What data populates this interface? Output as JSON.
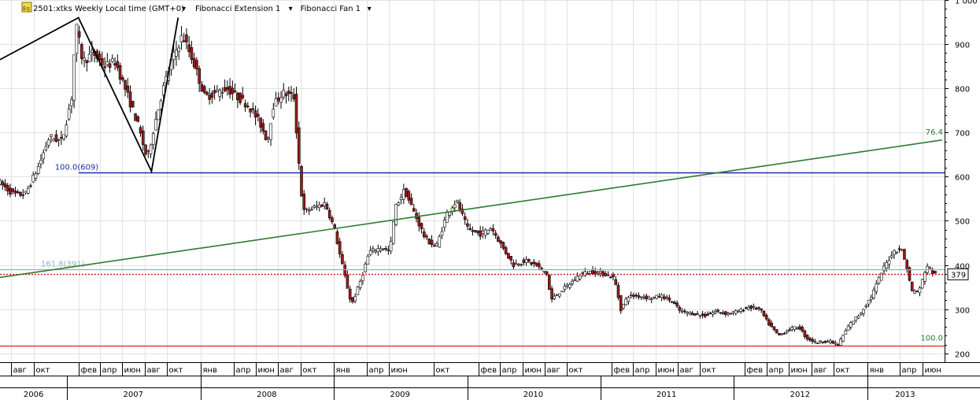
{
  "header": {
    "symbol_title": "2501:xtks Weekly Local time (GMT+0)",
    "indicators": [
      {
        "label": "Fibonacci Extension 1"
      },
      {
        "label": "Fibonacci Fan 1"
      }
    ]
  },
  "chart_data": {
    "type": "candlestick",
    "title": "2501:xtks Weekly Local time (GMT+0)",
    "ylim": [
      180,
      1000
    ],
    "y_ticks": [
      {
        "value": 1000,
        "label": "1 000"
      },
      {
        "value": 900,
        "label": "900"
      },
      {
        "value": 800,
        "label": "800"
      },
      {
        "value": 700,
        "label": "700"
      },
      {
        "value": 600,
        "label": "600"
      },
      {
        "value": 500,
        "label": "500"
      },
      {
        "value": 400,
        "label": "400"
      },
      {
        "value": 300,
        "label": "300"
      },
      {
        "value": 200,
        "label": "200"
      }
    ],
    "x_range": [
      "2006-07-01",
      "2013-08-01"
    ],
    "month_ticks": [
      {
        "date": "2006-08-01",
        "label": "авг"
      },
      {
        "date": "2006-10-01",
        "label": "окт"
      },
      {
        "date": "2007-02-01",
        "label": "фев"
      },
      {
        "date": "2007-04-01",
        "label": "апр"
      },
      {
        "date": "2007-06-01",
        "label": "июн"
      },
      {
        "date": "2007-08-01",
        "label": "авг"
      },
      {
        "date": "2007-10-01",
        "label": "окт"
      },
      {
        "date": "2008-01-01",
        "label": "янв"
      },
      {
        "date": "2008-04-01",
        "label": "апр"
      },
      {
        "date": "2008-06-01",
        "label": "июн"
      },
      {
        "date": "2008-08-01",
        "label": "авг"
      },
      {
        "date": "2008-10-01",
        "label": "окт"
      },
      {
        "date": "2009-01-01",
        "label": "янв"
      },
      {
        "date": "2009-04-01",
        "label": "апр"
      },
      {
        "date": "2009-06-01",
        "label": "июн"
      },
      {
        "date": "2009-10-01",
        "label": "окт"
      },
      {
        "date": "2010-02-01",
        "label": "фев"
      },
      {
        "date": "2010-04-01",
        "label": "апр"
      },
      {
        "date": "2010-06-01",
        "label": "июн"
      },
      {
        "date": "2010-08-01",
        "label": "авг"
      },
      {
        "date": "2010-10-01",
        "label": "окт"
      },
      {
        "date": "2011-02-01",
        "label": "фев"
      },
      {
        "date": "2011-04-01",
        "label": "апр"
      },
      {
        "date": "2011-06-01",
        "label": "июн"
      },
      {
        "date": "2011-08-01",
        "label": "авг"
      },
      {
        "date": "2011-10-01",
        "label": "окт"
      },
      {
        "date": "2012-02-01",
        "label": "фев"
      },
      {
        "date": "2012-04-01",
        "label": "апр"
      },
      {
        "date": "2012-06-01",
        "label": "июн"
      },
      {
        "date": "2012-08-01",
        "label": "авг"
      },
      {
        "date": "2012-10-01",
        "label": "окт"
      },
      {
        "date": "2013-01-01",
        "label": "янв"
      },
      {
        "date": "2013-04-01",
        "label": "апр"
      },
      {
        "date": "2013-06-01",
        "label": "июн"
      }
    ],
    "year_labels": [
      {
        "date": "2006-10-01",
        "label": "2006"
      },
      {
        "date": "2007-07-01",
        "label": "2007"
      },
      {
        "date": "2008-07-01",
        "label": "2008"
      },
      {
        "date": "2009-07-01",
        "label": "2009"
      },
      {
        "date": "2010-07-01",
        "label": "2010"
      },
      {
        "date": "2011-07-01",
        "label": "2011"
      },
      {
        "date": "2012-07-01",
        "label": "2012"
      },
      {
        "date": "2013-04-15",
        "label": "2013"
      }
    ],
    "year_boundaries": [
      "2007-01-01",
      "2008-01-01",
      "2009-01-01",
      "2010-01-01",
      "2011-01-01",
      "2012-01-01",
      "2013-01-01"
    ],
    "price_keypoints": [
      [
        "2006-07-01",
        590
      ],
      [
        "2006-08-15",
        560
      ],
      [
        "2006-09-15",
        560
      ],
      [
        "2006-10-20",
        620
      ],
      [
        "2006-11-20",
        690
      ],
      [
        "2006-12-25",
        680
      ],
      [
        "2007-01-20",
        780
      ],
      [
        "2007-02-01",
        945
      ],
      [
        "2007-02-20",
        860
      ],
      [
        "2007-03-20",
        880
      ],
      [
        "2007-04-20",
        850
      ],
      [
        "2007-05-20",
        860
      ],
      [
        "2007-06-20",
        790
      ],
      [
        "2007-07-20",
        720
      ],
      [
        "2007-08-15",
        640
      ],
      [
        "2007-09-05",
        720
      ],
      [
        "2007-09-25",
        790
      ],
      [
        "2007-10-20",
        860
      ],
      [
        "2007-11-20",
        920
      ],
      [
        "2007-12-20",
        860
      ],
      [
        "2008-01-20",
        780
      ],
      [
        "2008-02-20",
        790
      ],
      [
        "2008-03-20",
        800
      ],
      [
        "2008-04-20",
        780
      ],
      [
        "2008-05-20",
        760
      ],
      [
        "2008-06-20",
        720
      ],
      [
        "2008-07-10",
        680
      ],
      [
        "2008-07-25",
        760
      ],
      [
        "2008-08-20",
        790
      ],
      [
        "2008-09-20",
        780
      ],
      [
        "2008-10-05",
        620
      ],
      [
        "2008-10-15",
        520
      ],
      [
        "2008-11-15",
        530
      ],
      [
        "2008-12-15",
        540
      ],
      [
        "2009-01-10",
        480
      ],
      [
        "2009-01-25",
        420
      ],
      [
        "2009-02-25",
        310
      ],
      [
        "2009-03-20",
        360
      ],
      [
        "2009-04-15",
        430
      ],
      [
        "2009-05-20",
        440
      ],
      [
        "2009-06-10",
        430
      ],
      [
        "2009-06-25",
        530
      ],
      [
        "2009-07-20",
        570
      ],
      [
        "2009-08-15",
        520
      ],
      [
        "2009-09-15",
        460
      ],
      [
        "2009-10-15",
        440
      ],
      [
        "2009-11-15",
        520
      ],
      [
        "2009-12-10",
        545
      ],
      [
        "2010-01-10",
        480
      ],
      [
        "2010-02-15",
        470
      ],
      [
        "2010-03-15",
        485
      ],
      [
        "2010-04-15",
        440
      ],
      [
        "2010-05-15",
        400
      ],
      [
        "2010-06-15",
        410
      ],
      [
        "2010-07-15",
        400
      ],
      [
        "2010-08-15",
        380
      ],
      [
        "2010-08-25",
        320
      ],
      [
        "2010-09-20",
        340
      ],
      [
        "2010-10-20",
        360
      ],
      [
        "2010-11-15",
        380
      ],
      [
        "2010-12-15",
        385
      ],
      [
        "2011-01-20",
        380
      ],
      [
        "2011-02-15",
        370
      ],
      [
        "2011-03-05",
        300
      ],
      [
        "2011-03-25",
        330
      ],
      [
        "2011-04-25",
        330
      ],
      [
        "2011-05-25",
        325
      ],
      [
        "2011-06-25",
        330
      ],
      [
        "2011-07-20",
        320
      ],
      [
        "2011-08-15",
        295
      ],
      [
        "2011-09-20",
        290
      ],
      [
        "2011-10-20",
        285
      ],
      [
        "2011-11-20",
        295
      ],
      [
        "2011-12-20",
        290
      ],
      [
        "2012-01-20",
        295
      ],
      [
        "2012-02-20",
        305
      ],
      [
        "2012-03-20",
        300
      ],
      [
        "2012-04-10",
        270
      ],
      [
        "2012-05-10",
        240
      ],
      [
        "2012-06-10",
        255
      ],
      [
        "2012-07-05",
        260
      ],
      [
        "2012-07-25",
        235
      ],
      [
        "2012-08-20",
        225
      ],
      [
        "2012-09-20",
        228
      ],
      [
        "2012-10-20",
        220
      ],
      [
        "2012-11-20",
        265
      ],
      [
        "2012-12-20",
        290
      ],
      [
        "2013-01-20",
        330
      ],
      [
        "2013-02-20",
        390
      ],
      [
        "2013-03-20",
        430
      ],
      [
        "2013-04-10",
        440
      ],
      [
        "2013-04-25",
        400
      ],
      [
        "2013-05-10",
        340
      ],
      [
        "2013-05-30",
        340
      ],
      [
        "2013-06-20",
        400
      ],
      [
        "2013-07-10",
        379
      ]
    ],
    "last_price": {
      "value": 379,
      "label": "379"
    },
    "fibonacci_extension": {
      "zigzag_points": [
        [
          "2006-07-01",
          865
        ],
        [
          "2007-02-01",
          960
        ],
        [
          "2007-08-20",
          612
        ],
        [
          "2007-11-01",
          960
        ]
      ],
      "levels": [
        {
          "label": "100.0(609)",
          "value": 609,
          "color": "#1a2ea0",
          "start": "2007-02-01"
        },
        {
          "label": "161.8(391)",
          "value": 391,
          "color": "#8ab4c0",
          "start": "2006-07-01"
        }
      ]
    },
    "fibonacci_fan": {
      "line": {
        "start": [
          "2006-07-01",
          372
        ],
        "end": [
          "2013-07-25",
          683
        ],
        "color": "#2f7a2f"
      },
      "labels": [
        {
          "label": "76.4",
          "color": "#2f7a2f",
          "at": [
            "2013-07-10",
            695
          ]
        },
        {
          "label": "100.0",
          "color": "#2f7a2f",
          "at": [
            "2013-07-10",
            229
          ]
        }
      ]
    },
    "horizontal_levels": [
      {
        "value": 380,
        "color": "#cc2222",
        "style": "dotted"
      },
      {
        "value": 218,
        "color": "#dd2222",
        "style": "solid",
        "end": "2013-02-01"
      }
    ],
    "grid": true
  }
}
